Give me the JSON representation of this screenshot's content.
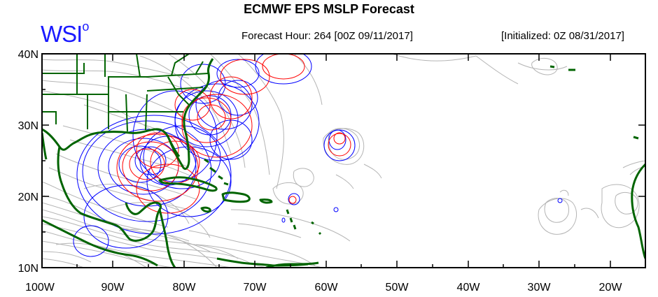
{
  "title": "ECMWF EPS MSLP Forecast",
  "logo_text": "WSI",
  "logo_degree": "o",
  "forecast_hour": "Forecast Hour: 264 [00Z 09/11/2017]",
  "initialized": "[Initialized: 0Z 08/31/2017]",
  "y_ticks": [
    "40N",
    "30N",
    "20N",
    "10N"
  ],
  "x_ticks": [
    "100W",
    "90W",
    "80W",
    "70W",
    "60W",
    "50W",
    "40W",
    "30W",
    "20W"
  ],
  "colors": {
    "coastline": "#006400",
    "ensemble_contours": "#b4b4b4",
    "low_pressure_blue": "#0000ff",
    "low_pressure_red": "#ff0000",
    "logo": "#1a1aff"
  },
  "map_extent": {
    "lon_min": -100,
    "lon_max": -15,
    "lat_min": 10,
    "lat_max": 40
  }
}
